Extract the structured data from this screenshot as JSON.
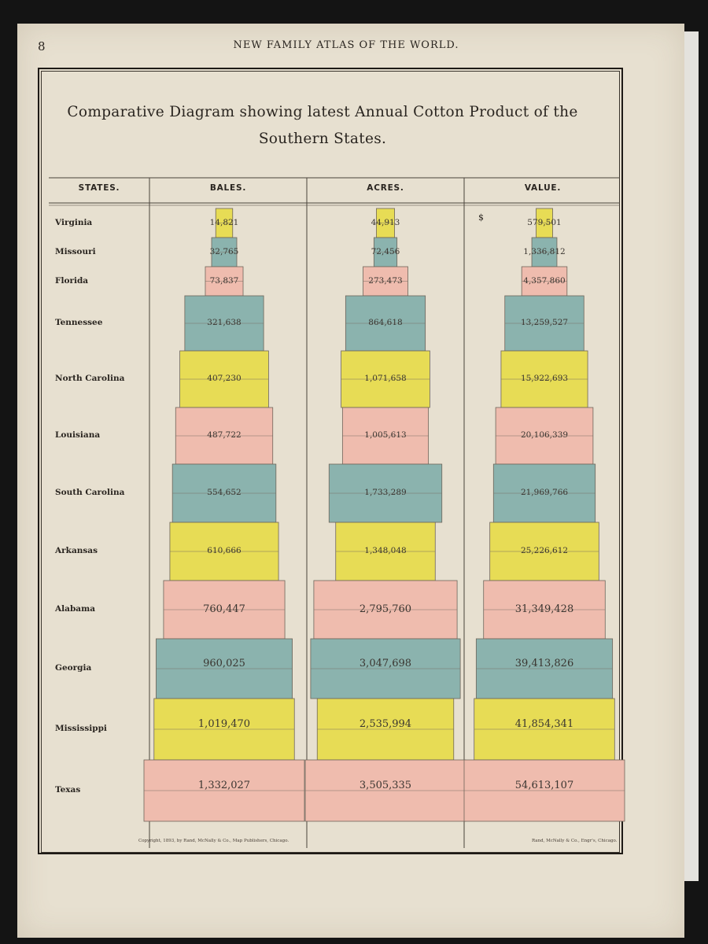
{
  "page": {
    "number": "8",
    "header": "NEW FAMILY ATLAS OF THE WORLD.",
    "copyright": "Copyright, 1893, by Rand, McNally & Co., Map Publishers, Chicago.",
    "engraver": "Rand, McNally & Co., Engr's, Chicago."
  },
  "chart_data": {
    "type": "table",
    "title": "Comparative Diagram showing latest Annual Cotton Product of the Southern States.",
    "columns": [
      "STATES.",
      "BALES.",
      "ACRES.",
      "VALUE."
    ],
    "currency_symbol": "$",
    "states": [
      "Virginia",
      "Missouri",
      "Florida",
      "Tennessee",
      "North Carolina",
      "Louisiana",
      "South Carolina",
      "Arkansas",
      "Alabama",
      "Georgia",
      "Mississippi",
      "Texas"
    ],
    "bales": [
      14821,
      32765,
      73837,
      321638,
      407230,
      487722,
      554652,
      610666,
      760447,
      960025,
      1019470,
      1332027
    ],
    "acres": [
      44913,
      72456,
      273473,
      864618,
      1071658,
      1005613,
      1733289,
      1348048,
      2795760,
      3047698,
      2535994,
      3505335
    ],
    "value": [
      579501,
      1336812,
      4357860,
      13259527,
      15922693,
      20106339,
      21969766,
      25226612,
      31349428,
      39413826,
      41854341,
      54613107
    ],
    "bales_labels": [
      "14,821",
      "32,765",
      "73,837",
      "321,638",
      "407,230",
      "487,722",
      "554,652",
      "610,666",
      "760,447",
      "960,025",
      "1,019,470",
      "1,332,027"
    ],
    "acres_labels": [
      "44,913",
      "72,456",
      "273,473",
      "864,618",
      "1,071,658",
      "1,005,613",
      "1,733,289",
      "1,348,048",
      "2,795,760",
      "3,047,698",
      "2,535,994",
      "3,505,335"
    ],
    "value_labels": [
      "579,501",
      "1,336,812",
      "4,357,860",
      "13,259,527",
      "15,922,693",
      "20,106,339",
      "21,969,766",
      "25,226,612",
      "31,349,428",
      "39,413,826",
      "41,854,341",
      "54,613,107"
    ],
    "row_colors": [
      "#e7dc55",
      "#8bb3ae",
      "#efbcae",
      "#8bb3ae",
      "#e7dc55",
      "#efbcae",
      "#8bb3ae",
      "#e7dc55",
      "#efbcae",
      "#8bb3ae",
      "#e7dc55",
      "#efbcae"
    ]
  }
}
